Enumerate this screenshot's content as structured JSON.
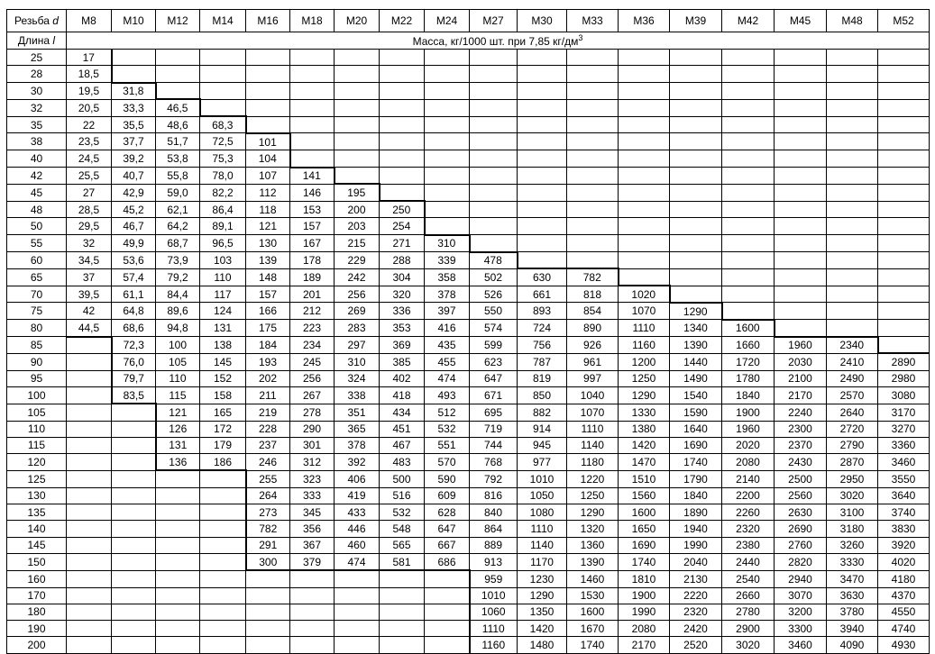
{
  "header": {
    "thread_label": "Резьба",
    "thread_symbol": "d",
    "threads": [
      "M8",
      "M10",
      "M12",
      "M14",
      "M16",
      "M18",
      "M20",
      "M22",
      "M24",
      "M27",
      "M30",
      "M33",
      "M36",
      "M39",
      "M42",
      "M45",
      "M48",
      "M52"
    ],
    "length_label": "Длина",
    "length_symbol": "l",
    "mass_label": "Масса, кг/1000 шт. при 7,85 кг/дм",
    "mass_sup": "3"
  },
  "rows": [
    {
      "length": "25",
      "values": [
        "17",
        null,
        null,
        null,
        null,
        null,
        null,
        null,
        null,
        null,
        null,
        null,
        null,
        null,
        null,
        null,
        null,
        null
      ]
    },
    {
      "length": "28",
      "values": [
        "18,5",
        null,
        null,
        null,
        null,
        null,
        null,
        null,
        null,
        null,
        null,
        null,
        null,
        null,
        null,
        null,
        null,
        null
      ]
    },
    {
      "length": "30",
      "values": [
        "19,5",
        "31,8",
        null,
        null,
        null,
        null,
        null,
        null,
        null,
        null,
        null,
        null,
        null,
        null,
        null,
        null,
        null,
        null
      ]
    },
    {
      "length": "32",
      "values": [
        "20,5",
        "33,3",
        "46,5",
        null,
        null,
        null,
        null,
        null,
        null,
        null,
        null,
        null,
        null,
        null,
        null,
        null,
        null,
        null
      ]
    },
    {
      "length": "35",
      "values": [
        "22",
        "35,5",
        "48,6",
        "68,3",
        null,
        null,
        null,
        null,
        null,
        null,
        null,
        null,
        null,
        null,
        null,
        null,
        null,
        null
      ]
    },
    {
      "length": "38",
      "values": [
        "23,5",
        "37,7",
        "51,7",
        "72,5",
        "101",
        null,
        null,
        null,
        null,
        null,
        null,
        null,
        null,
        null,
        null,
        null,
        null,
        null
      ]
    },
    {
      "length": "40",
      "values": [
        "24,5",
        "39,2",
        "53,8",
        "75,3",
        "104",
        null,
        null,
        null,
        null,
        null,
        null,
        null,
        null,
        null,
        null,
        null,
        null,
        null
      ]
    },
    {
      "length": "42",
      "values": [
        "25,5",
        "40,7",
        "55,8",
        "78,0",
        "107",
        "141",
        null,
        null,
        null,
        null,
        null,
        null,
        null,
        null,
        null,
        null,
        null,
        null
      ]
    },
    {
      "length": "45",
      "values": [
        "27",
        "42,9",
        "59,0",
        "82,2",
        "112",
        "146",
        "195",
        null,
        null,
        null,
        null,
        null,
        null,
        null,
        null,
        null,
        null,
        null
      ]
    },
    {
      "length": "48",
      "values": [
        "28,5",
        "45,2",
        "62,1",
        "86,4",
        "118",
        "153",
        "200",
        "250",
        null,
        null,
        null,
        null,
        null,
        null,
        null,
        null,
        null,
        null
      ]
    },
    {
      "length": "50",
      "values": [
        "29,5",
        "46,7",
        "64,2",
        "89,1",
        "121",
        "157",
        "203",
        "254",
        null,
        null,
        null,
        null,
        null,
        null,
        null,
        null,
        null,
        null
      ]
    },
    {
      "length": "55",
      "values": [
        "32",
        "49,9",
        "68,7",
        "96,5",
        "130",
        "167",
        "215",
        "271",
        "310",
        null,
        null,
        null,
        null,
        null,
        null,
        null,
        null,
        null
      ]
    },
    {
      "length": "60",
      "values": [
        "34,5",
        "53,6",
        "73,9",
        "103",
        "139",
        "178",
        "229",
        "288",
        "339",
        "478",
        null,
        null,
        null,
        null,
        null,
        null,
        null,
        null
      ]
    },
    {
      "length": "65",
      "values": [
        "37",
        "57,4",
        "79,2",
        "110",
        "148",
        "189",
        "242",
        "304",
        "358",
        "502",
        "630",
        "782",
        null,
        null,
        null,
        null,
        null,
        null
      ]
    },
    {
      "length": "70",
      "values": [
        "39,5",
        "61,1",
        "84,4",
        "117",
        "157",
        "201",
        "256",
        "320",
        "378",
        "526",
        "661",
        "818",
        "1020",
        null,
        null,
        null,
        null,
        null
      ]
    },
    {
      "length": "75",
      "values": [
        "42",
        "64,8",
        "89,6",
        "124",
        "166",
        "212",
        "269",
        "336",
        "397",
        "550",
        "893",
        "854",
        "1070",
        "1290",
        null,
        null,
        null,
        null
      ]
    },
    {
      "length": "80",
      "values": [
        "44,5",
        "68,6",
        "94,8",
        "131",
        "175",
        "223",
        "283",
        "353",
        "416",
        "574",
        "724",
        "890",
        "1110",
        "1340",
        "1600",
        null,
        null,
        null
      ]
    },
    {
      "length": "85",
      "values": [
        null,
        "72,3",
        "100",
        "138",
        "184",
        "234",
        "297",
        "369",
        "435",
        "599",
        "756",
        "926",
        "1160",
        "1390",
        "1660",
        "1960",
        "2340",
        null
      ]
    },
    {
      "length": "90",
      "values": [
        null,
        "76,0",
        "105",
        "145",
        "193",
        "245",
        "310",
        "385",
        "455",
        "623",
        "787",
        "961",
        "1200",
        "1440",
        "1720",
        "2030",
        "2410",
        "2890"
      ]
    },
    {
      "length": "95",
      "values": [
        null,
        "79,7",
        "110",
        "152",
        "202",
        "256",
        "324",
        "402",
        "474",
        "647",
        "819",
        "997",
        "1250",
        "1490",
        "1780",
        "2100",
        "2490",
        "2980"
      ]
    },
    {
      "length": "100",
      "values": [
        null,
        "83,5",
        "115",
        "158",
        "211",
        "267",
        "338",
        "418",
        "493",
        "671",
        "850",
        "1040",
        "1290",
        "1540",
        "1840",
        "2170",
        "2570",
        "3080"
      ]
    },
    {
      "length": "105",
      "values": [
        null,
        null,
        "121",
        "165",
        "219",
        "278",
        "351",
        "434",
        "512",
        "695",
        "882",
        "1070",
        "1330",
        "1590",
        "1900",
        "2240",
        "2640",
        "3170"
      ]
    },
    {
      "length": "110",
      "values": [
        null,
        null,
        "126",
        "172",
        "228",
        "290",
        "365",
        "451",
        "532",
        "719",
        "914",
        "1110",
        "1380",
        "1640",
        "1960",
        "2300",
        "2720",
        "3270"
      ]
    },
    {
      "length": "115",
      "values": [
        null,
        null,
        "131",
        "179",
        "237",
        "301",
        "378",
        "467",
        "551",
        "744",
        "945",
        "1140",
        "1420",
        "1690",
        "2020",
        "2370",
        "2790",
        "3360"
      ]
    },
    {
      "length": "120",
      "values": [
        null,
        null,
        "136",
        "186",
        "246",
        "312",
        "392",
        "483",
        "570",
        "768",
        "977",
        "1180",
        "1470",
        "1740",
        "2080",
        "2430",
        "2870",
        "3460"
      ]
    },
    {
      "length": "125",
      "values": [
        null,
        null,
        null,
        null,
        "255",
        "323",
        "406",
        "500",
        "590",
        "792",
        "1010",
        "1220",
        "1510",
        "1790",
        "2140",
        "2500",
        "2950",
        "3550"
      ]
    },
    {
      "length": "130",
      "values": [
        null,
        null,
        null,
        null,
        "264",
        "333",
        "419",
        "516",
        "609",
        "816",
        "1050",
        "1250",
        "1560",
        "1840",
        "2200",
        "2560",
        "3020",
        "3640"
      ]
    },
    {
      "length": "135",
      "values": [
        null,
        null,
        null,
        null,
        "273",
        "345",
        "433",
        "532",
        "628",
        "840",
        "1080",
        "1290",
        "1600",
        "1890",
        "2260",
        "2630",
        "3100",
        "3740"
      ]
    },
    {
      "length": "140",
      "values": [
        null,
        null,
        null,
        null,
        "782",
        "356",
        "446",
        "548",
        "647",
        "864",
        "1110",
        "1320",
        "1650",
        "1940",
        "2320",
        "2690",
        "3180",
        "3830"
      ]
    },
    {
      "length": "145",
      "values": [
        null,
        null,
        null,
        null,
        "291",
        "367",
        "460",
        "565",
        "667",
        "889",
        "1140",
        "1360",
        "1690",
        "1990",
        "2380",
        "2760",
        "3260",
        "3920"
      ]
    },
    {
      "length": "150",
      "values": [
        null,
        null,
        null,
        null,
        "300",
        "379",
        "474",
        "581",
        "686",
        "913",
        "1170",
        "1390",
        "1740",
        "2040",
        "2440",
        "2820",
        "3330",
        "4020"
      ]
    },
    {
      "length": "160",
      "values": [
        null,
        null,
        null,
        null,
        null,
        null,
        null,
        null,
        null,
        "959",
        "1230",
        "1460",
        "1810",
        "2130",
        "2540",
        "2940",
        "3470",
        "4180"
      ]
    },
    {
      "length": "170",
      "values": [
        null,
        null,
        null,
        null,
        null,
        null,
        null,
        null,
        null,
        "1010",
        "1290",
        "1530",
        "1900",
        "2220",
        "2660",
        "3070",
        "3630",
        "4370"
      ]
    },
    {
      "length": "180",
      "values": [
        null,
        null,
        null,
        null,
        null,
        null,
        null,
        null,
        null,
        "1060",
        "1350",
        "1600",
        "1990",
        "2320",
        "2780",
        "3200",
        "3780",
        "4550"
      ]
    },
    {
      "length": "190",
      "values": [
        null,
        null,
        null,
        null,
        null,
        null,
        null,
        null,
        null,
        "1110",
        "1420",
        "1670",
        "2080",
        "2420",
        "2900",
        "3300",
        "3940",
        "4740"
      ]
    },
    {
      "length": "200",
      "values": [
        null,
        null,
        null,
        null,
        null,
        null,
        null,
        null,
        null,
        "1160",
        "1480",
        "1740",
        "2170",
        "2520",
        "3020",
        "3460",
        "4090",
        "4930"
      ]
    }
  ]
}
